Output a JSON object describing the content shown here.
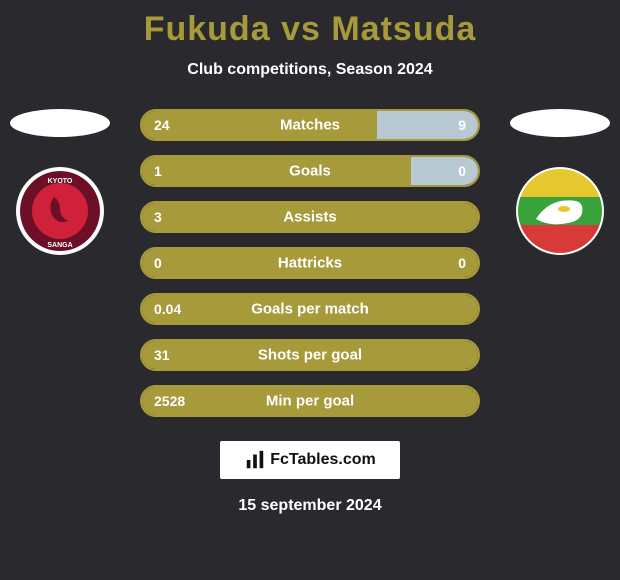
{
  "page": {
    "background_color": "#2a2a2e",
    "title_color": "#a79a3a",
    "text_color": "#ffffff"
  },
  "header": {
    "player1": "Fukuda",
    "vs": "vs",
    "player2": "Matsuda",
    "subtitle": "Club competitions, Season 2024"
  },
  "players": {
    "left_badge": {
      "bg": "#6b1026",
      "ring": "#ffffff",
      "inner": "#d0213a",
      "text_top": "KYOTO",
      "text_bottom": "SANGA"
    },
    "right_badge": {
      "bg": "#ffffff",
      "stripes": [
        "#e6c72e",
        "#3aa23a",
        "#d83a3a"
      ]
    }
  },
  "stats": {
    "bar_color_primary": "#a79a3a",
    "bar_color_secondary": "#b8c9d4",
    "border_color": "#a79a3a",
    "rows": [
      {
        "label": "Matches",
        "left_val": "24",
        "right_val": "9",
        "left_pct": 70,
        "right_pct": 30
      },
      {
        "label": "Goals",
        "left_val": "1",
        "right_val": "0",
        "left_pct": 80,
        "right_pct": 20
      },
      {
        "label": "Assists",
        "left_val": "3",
        "right_val": "",
        "left_pct": 100,
        "right_pct": 0
      },
      {
        "label": "Hattricks",
        "left_val": "0",
        "right_val": "0",
        "left_pct": 100,
        "right_pct": 0
      },
      {
        "label": "Goals per match",
        "left_val": "0.04",
        "right_val": "",
        "left_pct": 100,
        "right_pct": 0
      },
      {
        "label": "Shots per goal",
        "left_val": "31",
        "right_val": "",
        "left_pct": 100,
        "right_pct": 0
      },
      {
        "label": "Min per goal",
        "left_val": "2528",
        "right_val": "",
        "left_pct": 100,
        "right_pct": 0
      }
    ]
  },
  "footer": {
    "brand_icon": "chart-icon",
    "brand_text": "FcTables.com",
    "date": "15 september 2024"
  }
}
